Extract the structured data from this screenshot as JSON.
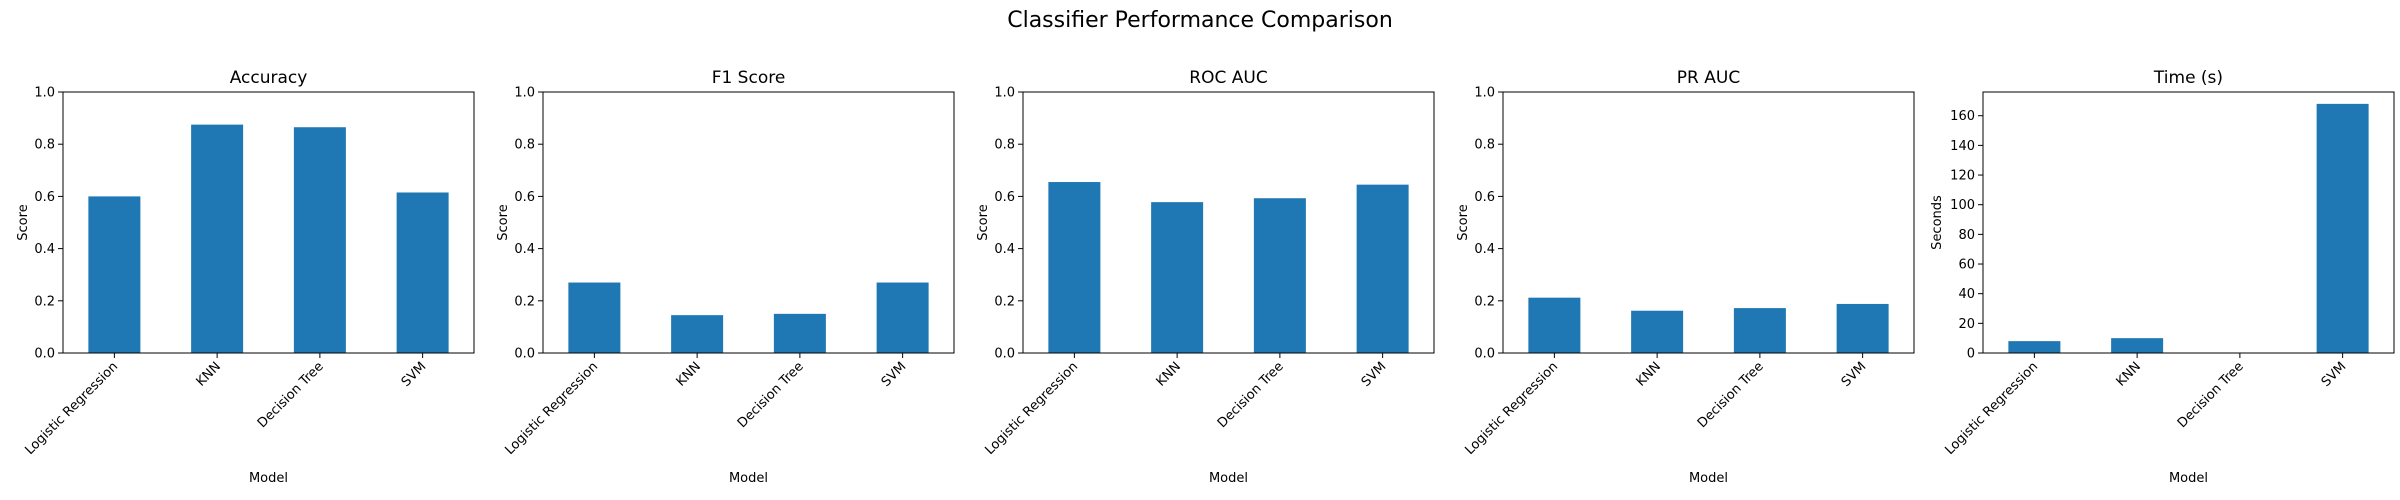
{
  "figure": {
    "suptitle": "Classifier Performance Comparison",
    "bar_color": "#1f77b4"
  },
  "chart_data": [
    {
      "type": "bar",
      "title": "Accuracy",
      "xlabel": "Model",
      "ylabel": "Score",
      "categories": [
        "Logistic Regression",
        "KNN",
        "Decision Tree",
        "SVM"
      ],
      "values": [
        0.6,
        0.875,
        0.865,
        0.615
      ],
      "ylim": [
        0,
        1.0
      ],
      "yticks": [
        "0.0",
        "0.2",
        "0.4",
        "0.6",
        "0.8",
        "1.0"
      ],
      "grid": false
    },
    {
      "type": "bar",
      "title": "F1 Score",
      "xlabel": "Model",
      "ylabel": "Score",
      "categories": [
        "Logistic Regression",
        "KNN",
        "Decision Tree",
        "SVM"
      ],
      "values": [
        0.27,
        0.145,
        0.15,
        0.27
      ],
      "ylim": [
        0,
        1.0
      ],
      "yticks": [
        "0.0",
        "0.2",
        "0.4",
        "0.6",
        "0.8",
        "1.0"
      ],
      "grid": false
    },
    {
      "type": "bar",
      "title": "ROC AUC",
      "xlabel": "Model",
      "ylabel": "Score",
      "categories": [
        "Logistic Regression",
        "KNN",
        "Decision Tree",
        "SVM"
      ],
      "values": [
        0.655,
        0.578,
        0.593,
        0.645
      ],
      "ylim": [
        0,
        1.0
      ],
      "yticks": [
        "0.0",
        "0.2",
        "0.4",
        "0.6",
        "0.8",
        "1.0"
      ],
      "grid": false
    },
    {
      "type": "bar",
      "title": "PR AUC",
      "xlabel": "Model",
      "ylabel": "Score",
      "categories": [
        "Logistic Regression",
        "KNN",
        "Decision Tree",
        "SVM"
      ],
      "values": [
        0.212,
        0.162,
        0.172,
        0.188
      ],
      "ylim": [
        0,
        1.0
      ],
      "yticks": [
        "0.0",
        "0.2",
        "0.4",
        "0.6",
        "0.8",
        "1.0"
      ],
      "grid": false
    },
    {
      "type": "bar",
      "title": "Time (s)",
      "xlabel": "Model",
      "ylabel": "Seconds",
      "categories": [
        "Logistic Regression",
        "KNN",
        "Decision Tree",
        "SVM"
      ],
      "values": [
        8,
        10,
        0.2,
        168
      ],
      "ylim": [
        0,
        176
      ],
      "yticks": [
        "0",
        "20",
        "40",
        "60",
        "80",
        "100",
        "120",
        "140",
        "160"
      ],
      "grid": false
    }
  ]
}
